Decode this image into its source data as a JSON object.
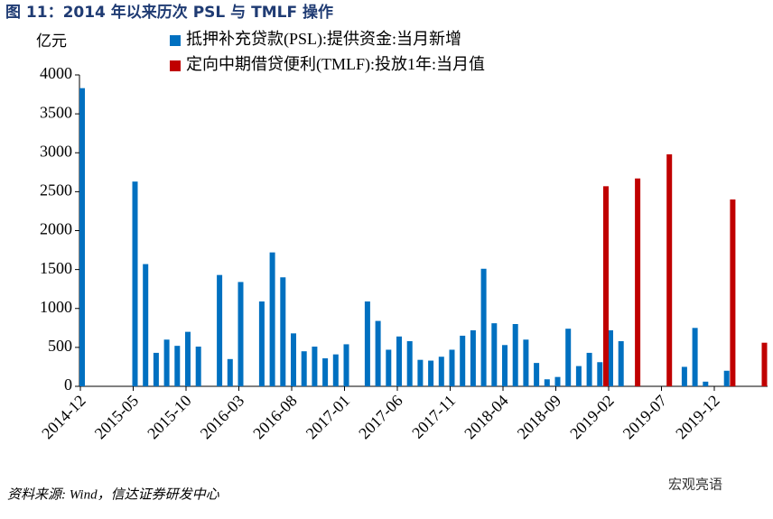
{
  "chart_data": {
    "type": "bar",
    "title": "图 11：2014 年以来历次 PSL 与 TMLF 操作",
    "y_unit": "亿元",
    "source": "资料来源: Wind，信达证券研发中心",
    "watermark": "宏观亮语",
    "categories": [
      "2014-12",
      null,
      null,
      null,
      null,
      "2015-05",
      null,
      null,
      null,
      null,
      "2015-10",
      null,
      null,
      null,
      null,
      "2016-03",
      null,
      null,
      null,
      null,
      "2016-08",
      null,
      null,
      null,
      null,
      "2017-01",
      null,
      null,
      null,
      null,
      "2017-06",
      null,
      null,
      null,
      null,
      "2017-11",
      null,
      null,
      null,
      null,
      "2018-04",
      null,
      null,
      null,
      null,
      "2018-09",
      null,
      null,
      null,
      null,
      "2019-02",
      null,
      null,
      null,
      null,
      "2019-07",
      null,
      null,
      null,
      null,
      "2019-12",
      null,
      null,
      null,
      null,
      null
    ],
    "series": [
      {
        "name": "抵押补充贷款(PSL):提供资金:当月新增",
        "color": "#0070c0",
        "values": [
          3830,
          null,
          null,
          null,
          null,
          2630,
          1570,
          430,
          600,
          520,
          700,
          510,
          null,
          1430,
          350,
          1340,
          null,
          1090,
          1720,
          1400,
          680,
          450,
          510,
          360,
          410,
          540,
          null,
          1090,
          840,
          470,
          640,
          580,
          340,
          330,
          380,
          470,
          650,
          720,
          1510,
          810,
          530,
          800,
          600,
          300,
          90,
          120,
          740,
          260,
          430,
          310,
          720,
          580,
          null,
          null,
          null,
          null,
          null,
          250,
          750,
          60,
          null,
          200,
          null,
          null,
          null,
          null
        ]
      },
      {
        "name": "定向中期借贷便利(TMLF):投放1年:当月值",
        "color": "#c00000",
        "values": [
          null,
          null,
          null,
          null,
          null,
          null,
          null,
          null,
          null,
          null,
          null,
          null,
          null,
          null,
          null,
          null,
          null,
          null,
          null,
          null,
          null,
          null,
          null,
          null,
          null,
          null,
          null,
          null,
          null,
          null,
          null,
          null,
          null,
          null,
          null,
          null,
          null,
          null,
          null,
          null,
          null,
          null,
          null,
          null,
          null,
          null,
          null,
          null,
          null,
          null,
          2570,
          null,
          null,
          2670,
          null,
          null,
          2980,
          null,
          null,
          null,
          null,
          null,
          2400,
          null,
          null,
          560
        ]
      }
    ],
    "ylim": [
      0,
      4000
    ],
    "yticks": [
      0,
      500,
      1000,
      1500,
      2000,
      2500,
      3000,
      3500,
      4000
    ]
  }
}
